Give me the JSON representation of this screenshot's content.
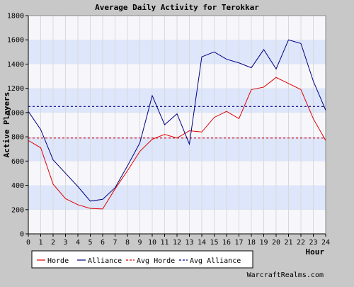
{
  "chart_data": {
    "type": "line",
    "title": "Average Daily Activity for Terokkar",
    "xlabel": "Hour",
    "ylabel": "Active Players",
    "x": [
      0,
      1,
      2,
      3,
      4,
      5,
      6,
      7,
      8,
      9,
      10,
      11,
      12,
      13,
      14,
      15,
      16,
      17,
      18,
      19,
      20,
      21,
      22,
      23,
      24
    ],
    "xlim": [
      0,
      24
    ],
    "ylim": [
      0,
      1800
    ],
    "x_ticks": [
      "0",
      "1",
      "2",
      "3",
      "4",
      "5",
      "6",
      "7",
      "8",
      "9",
      "10",
      "11",
      "12",
      "13",
      "14",
      "15",
      "16",
      "17",
      "18",
      "19",
      "20",
      "21",
      "22",
      "23",
      "24"
    ],
    "y_ticks": [
      "0",
      "200",
      "400",
      "600",
      "800",
      "1000",
      "1200",
      "1400",
      "1600",
      "1800"
    ],
    "series": [
      {
        "name": "Horde",
        "color": "#e00000",
        "style": "solid",
        "values": [
          770,
          710,
          410,
          290,
          240,
          210,
          205,
          370,
          520,
          680,
          780,
          820,
          790,
          850,
          840,
          960,
          1010,
          950,
          1190,
          1210,
          1290,
          1240,
          1190,
          950,
          770
        ]
      },
      {
        "name": "Alliance",
        "color": "#000080",
        "style": "solid",
        "values": [
          1010,
          860,
          610,
          500,
          390,
          270,
          285,
          380,
          560,
          750,
          1140,
          900,
          990,
          740,
          1460,
          1500,
          1440,
          1410,
          1370,
          1520,
          1360,
          1600,
          1570,
          1260,
          1020
        ]
      }
    ],
    "reference_lines": [
      {
        "name": "Avg Horde",
        "value": 790,
        "color": "#e00000",
        "style": "dashed"
      },
      {
        "name": "Avg Alliance",
        "value": 1050,
        "color": "#000080",
        "style": "dashed"
      }
    ],
    "legend": {
      "placement": "bottom-left",
      "items": [
        "Horde",
        "Alliance",
        "Avg Horde",
        "Avg Alliance"
      ]
    },
    "bands": {
      "light": "#f7f7fb",
      "blue": "#dde6fa"
    },
    "grid": true
  },
  "credit": "WarcraftRealms.com"
}
